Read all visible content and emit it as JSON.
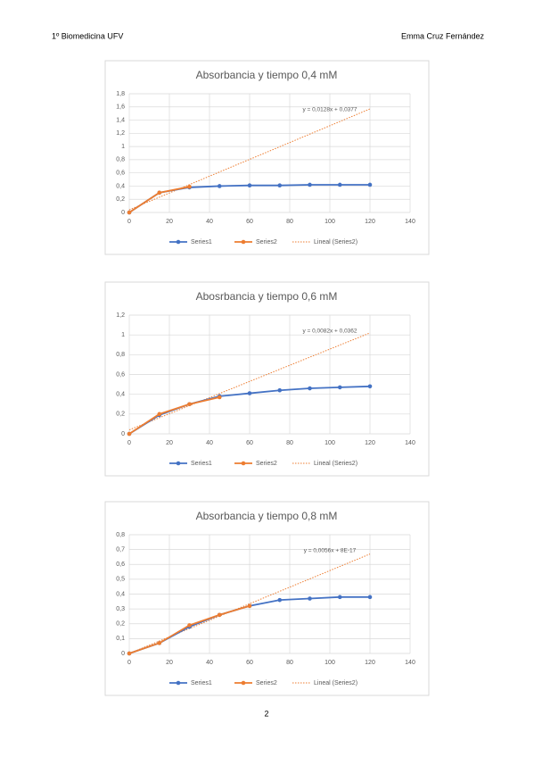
{
  "header": {
    "left": "1º Biomedicina UFV",
    "right": "Emma Cruz Fernández"
  },
  "chart_data": [
    {
      "type": "line",
      "title": "Absorbancia y tiempo 0,4 mM",
      "annotation": "y = 0,0128x + 0,0377",
      "xlim": [
        0,
        140
      ],
      "xticks": [
        0,
        20,
        40,
        60,
        80,
        100,
        120,
        140
      ],
      "ylim": [
        0,
        1.8
      ],
      "yticks": [
        0,
        {
          "value": 0.2,
          "label": "0,2"
        },
        {
          "value": 0.4,
          "label": "0,4"
        },
        {
          "value": 0.6,
          "label": "0,6"
        },
        {
          "value": 0.8,
          "label": "0,8"
        },
        1,
        {
          "value": 1.2,
          "label": "1,2"
        },
        {
          "value": 1.4,
          "label": "1,4"
        },
        {
          "value": 1.6,
          "label": "1,6"
        },
        {
          "value": 1.8,
          "label": "1,8"
        }
      ],
      "grid": true,
      "series": [
        {
          "name": "Series1",
          "color": "#4472c4",
          "style": "solid",
          "x": [
            0,
            15,
            30,
            45,
            60,
            75,
            90,
            105,
            120
          ],
          "values": [
            0,
            0.3,
            0.38,
            0.4,
            0.41,
            0.41,
            0.42,
            0.42,
            0.42
          ]
        },
        {
          "name": "Series2",
          "color": "#ed7d31",
          "style": "solid",
          "x": [
            0,
            15,
            30
          ],
          "values": [
            0,
            0.3,
            0.39
          ]
        },
        {
          "name": "Lineal (Series2)",
          "color": "#ed7d31",
          "style": "dotted",
          "x": [
            0,
            120
          ],
          "values": [
            0.04,
            1.57
          ]
        }
      ]
    },
    {
      "type": "line",
      "title": "Abosrbancia y tiempo 0,6 mM",
      "annotation": "y = 0,0082x + 0,0362",
      "xlim": [
        0,
        140
      ],
      "xticks": [
        0,
        20,
        40,
        60,
        80,
        100,
        120,
        140
      ],
      "ylim": [
        0,
        1.2
      ],
      "yticks": [
        0,
        {
          "value": 0.2,
          "label": "0,2"
        },
        {
          "value": 0.4,
          "label": "0,4"
        },
        {
          "value": 0.6,
          "label": "0,6"
        },
        {
          "value": 0.8,
          "label": "0,8"
        },
        1,
        {
          "value": 1.2,
          "label": "1,2"
        }
      ],
      "grid": true,
      "series": [
        {
          "name": "Series1",
          "color": "#4472c4",
          "style": "solid",
          "x": [
            0,
            15,
            30,
            45,
            60,
            75,
            90,
            105,
            120
          ],
          "values": [
            0,
            0.19,
            0.3,
            0.38,
            0.41,
            0.44,
            0.46,
            0.47,
            0.48
          ]
        },
        {
          "name": "Series2",
          "color": "#ed7d31",
          "style": "solid",
          "x": [
            0,
            15,
            30,
            45
          ],
          "values": [
            0,
            0.2,
            0.3,
            0.37
          ]
        },
        {
          "name": "Lineal (Series2)",
          "color": "#ed7d31",
          "style": "dotted",
          "x": [
            0,
            120
          ],
          "values": [
            0.04,
            1.02
          ]
        }
      ]
    },
    {
      "type": "line",
      "title": "Absorbancia y tiempo 0,8 mM",
      "annotation": "y = 0,0056x + 8E-17",
      "xlim": [
        0,
        140
      ],
      "xticks": [
        0,
        20,
        40,
        60,
        80,
        100,
        120,
        140
      ],
      "ylim": [
        0,
        0.8
      ],
      "yticks": [
        0,
        {
          "value": 0.1,
          "label": "0,1"
        },
        {
          "value": 0.2,
          "label": "0,2"
        },
        {
          "value": 0.3,
          "label": "0,3"
        },
        {
          "value": 0.4,
          "label": "0,4"
        },
        {
          "value": 0.5,
          "label": "0,5"
        },
        {
          "value": 0.6,
          "label": "0,6"
        },
        {
          "value": 0.7,
          "label": "0,7"
        },
        {
          "value": 0.8,
          "label": "0,8"
        }
      ],
      "grid": true,
      "series": [
        {
          "name": "Series1",
          "color": "#4472c4",
          "style": "solid",
          "x": [
            0,
            15,
            30,
            45,
            60,
            75,
            90,
            105,
            120
          ],
          "values": [
            0,
            0.07,
            0.18,
            0.26,
            0.32,
            0.36,
            0.37,
            0.38,
            0.38
          ]
        },
        {
          "name": "Series2",
          "color": "#ed7d31",
          "style": "solid",
          "x": [
            0,
            15,
            30,
            45,
            60
          ],
          "values": [
            0,
            0.07,
            0.19,
            0.26,
            0.32
          ]
        },
        {
          "name": "Lineal (Series2)",
          "color": "#ed7d31",
          "style": "dotted",
          "x": [
            0,
            120
          ],
          "values": [
            0,
            0.67
          ]
        }
      ]
    }
  ],
  "footer": {
    "page": "2"
  }
}
